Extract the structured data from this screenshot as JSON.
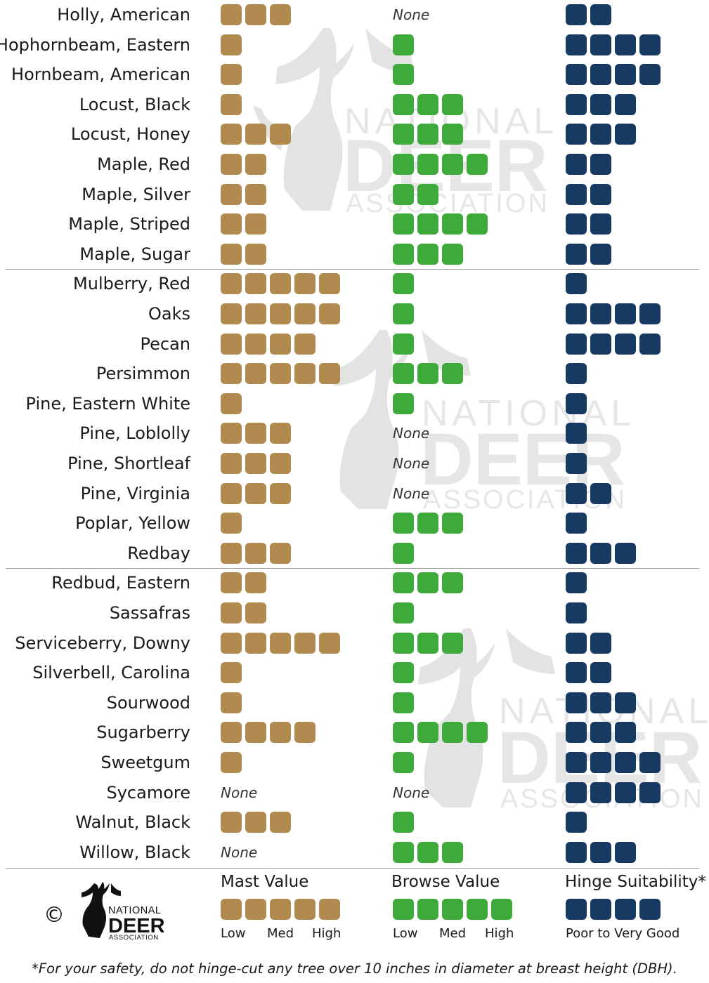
{
  "watermark": {
    "line1": "NATIONAL",
    "line2": "DEER",
    "line3": "ASSOCIATION"
  },
  "rows": [
    {
      "name": "Holly, American",
      "mast": 3,
      "browse": 0,
      "hinge": 2
    },
    {
      "name": "Hophornbeam, Eastern",
      "mast": 1,
      "browse": 1,
      "hinge": 4
    },
    {
      "name": "Hornbeam, American",
      "mast": 1,
      "browse": 1,
      "hinge": 4
    },
    {
      "name": "Locust, Black",
      "mast": 1,
      "browse": 3,
      "hinge": 3
    },
    {
      "name": "Locust, Honey",
      "mast": 3,
      "browse": 3,
      "hinge": 3
    },
    {
      "name": "Maple, Red",
      "mast": 2,
      "browse": 4,
      "hinge": 2
    },
    {
      "name": "Maple, Silver",
      "mast": 2,
      "browse": 2,
      "hinge": 2
    },
    {
      "name": "Maple, Striped",
      "mast": 2,
      "browse": 4,
      "hinge": 2
    },
    {
      "name": "Maple, Sugar",
      "mast": 2,
      "browse": 3,
      "hinge": 2
    },
    {
      "name": "Mulberry, Red",
      "mast": 5,
      "browse": 1,
      "hinge": 1
    },
    {
      "name": "Oaks",
      "mast": 5,
      "browse": 1,
      "hinge": 4
    },
    {
      "name": "Pecan",
      "mast": 4,
      "browse": 1,
      "hinge": 4
    },
    {
      "name": "Persimmon",
      "mast": 5,
      "browse": 3,
      "hinge": 1
    },
    {
      "name": "Pine, Eastern White",
      "mast": 1,
      "browse": 1,
      "hinge": 1
    },
    {
      "name": "Pine, Loblolly",
      "mast": 3,
      "browse": 0,
      "hinge": 1
    },
    {
      "name": "Pine, Shortleaf",
      "mast": 3,
      "browse": 0,
      "hinge": 1
    },
    {
      "name": "Pine, Virginia",
      "mast": 3,
      "browse": 0,
      "hinge": 2
    },
    {
      "name": "Poplar, Yellow",
      "mast": 1,
      "browse": 3,
      "hinge": 1
    },
    {
      "name": "Redbay",
      "mast": 3,
      "browse": 1,
      "hinge": 3
    },
    {
      "name": "Redbud, Eastern",
      "mast": 2,
      "browse": 3,
      "hinge": 1
    },
    {
      "name": "Sassafras",
      "mast": 2,
      "browse": 1,
      "hinge": 1
    },
    {
      "name": "Serviceberry, Downy",
      "mast": 5,
      "browse": 3,
      "hinge": 2
    },
    {
      "name": "Silverbell, Carolina",
      "mast": 1,
      "browse": 1,
      "hinge": 2
    },
    {
      "name": "Sourwood",
      "mast": 1,
      "browse": 1,
      "hinge": 3
    },
    {
      "name": "Sugarberry",
      "mast": 4,
      "browse": 4,
      "hinge": 3
    },
    {
      "name": "Sweetgum",
      "mast": 1,
      "browse": 1,
      "hinge": 4
    },
    {
      "name": "Sycamore",
      "mast": 0,
      "browse": 0,
      "hinge": 4
    },
    {
      "name": "Walnut, Black",
      "mast": 3,
      "browse": 1,
      "hinge": 1
    },
    {
      "name": "Willow, Black",
      "mast": 0,
      "browse": 3,
      "hinge": 3
    }
  ],
  "none_label": "None",
  "legend": {
    "mast": {
      "title": "Mast Value",
      "ticks": [
        "Low",
        "Med",
        "High"
      ]
    },
    "browse": {
      "title": "Browse Value",
      "ticks": [
        "Low",
        "Med",
        "High"
      ]
    },
    "hinge": {
      "title": "Hinge Suitability*",
      "ticks": [
        "Poor to Very Good"
      ]
    }
  },
  "copyright_symbol": "©",
  "logo": {
    "line1": "NATIONAL",
    "line2": "DEER",
    "line3": "ASSOCIATION"
  },
  "footnote": "*For your safety, do not hinge-cut any tree over 10 inches in diameter at breast height (DBH).",
  "colors": {
    "mast": "#b08a4e",
    "browse": "#3eaa3a",
    "hinge": "#173a63",
    "watermark": "#d9d9d9"
  },
  "chart_data": {
    "type": "table",
    "columns": [
      "Mast Value",
      "Browse Value",
      "Hinge Suitability*"
    ],
    "scale": [
      0,
      5
    ],
    "categories": [
      "Holly, American",
      "Hophornbeam, Eastern",
      "Hornbeam, American",
      "Locust, Black",
      "Locust, Honey",
      "Maple, Red",
      "Maple, Silver",
      "Maple, Striped",
      "Maple, Sugar",
      "Mulberry, Red",
      "Oaks",
      "Pecan",
      "Persimmon",
      "Pine, Eastern White",
      "Pine, Loblolly",
      "Pine, Shortleaf",
      "Pine, Virginia",
      "Poplar, Yellow",
      "Redbay",
      "Redbud, Eastern",
      "Sassafras",
      "Serviceberry, Downy",
      "Silverbell, Carolina",
      "Sourwood",
      "Sugarberry",
      "Sweetgum",
      "Sycamore",
      "Walnut, Black",
      "Willow, Black"
    ],
    "series": [
      {
        "name": "Mast Value",
        "values": [
          3,
          1,
          1,
          1,
          3,
          2,
          2,
          2,
          2,
          5,
          5,
          4,
          5,
          1,
          3,
          3,
          3,
          1,
          3,
          2,
          2,
          5,
          1,
          1,
          4,
          1,
          0,
          3,
          0
        ]
      },
      {
        "name": "Browse Value",
        "values": [
          0,
          1,
          1,
          3,
          3,
          4,
          2,
          4,
          3,
          1,
          1,
          1,
          3,
          1,
          0,
          0,
          0,
          3,
          1,
          3,
          1,
          3,
          1,
          1,
          4,
          1,
          0,
          1,
          3
        ]
      },
      {
        "name": "Hinge Suitability*",
        "values": [
          2,
          4,
          4,
          3,
          3,
          2,
          2,
          2,
          2,
          1,
          4,
          4,
          1,
          1,
          1,
          1,
          2,
          1,
          3,
          1,
          1,
          2,
          2,
          3,
          3,
          4,
          4,
          1,
          3
        ]
      }
    ]
  }
}
